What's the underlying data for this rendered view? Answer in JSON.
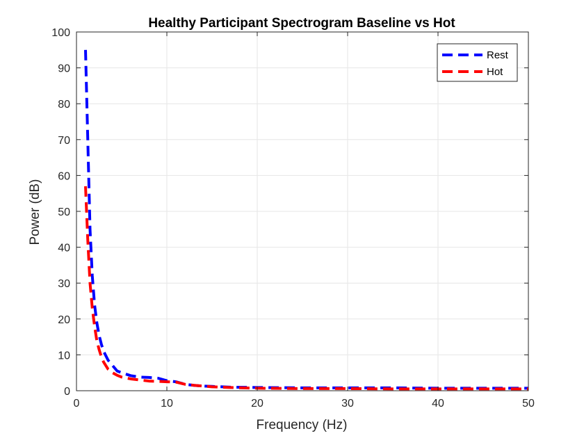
{
  "chart_data": {
    "type": "line",
    "title": "Healthy Participant Spectrogram Baseline vs Hot",
    "xlabel": "Frequency (Hz)",
    "ylabel": "Power (dB)",
    "xlim": [
      0,
      50
    ],
    "ylim": [
      0,
      100
    ],
    "xticks": [
      0,
      10,
      20,
      30,
      40,
      50
    ],
    "yticks": [
      0,
      10,
      20,
      30,
      40,
      50,
      60,
      70,
      80,
      90,
      100
    ],
    "grid": true,
    "legend_position": "top-right",
    "series": [
      {
        "name": "Rest",
        "color": "#0000ff",
        "line_style": "dashed",
        "x": [
          1,
          1.25,
          1.5,
          1.75,
          2,
          2.25,
          2.5,
          2.75,
          3,
          3.5,
          4,
          4.5,
          5,
          6,
          7,
          8,
          9,
          10,
          11,
          12,
          13,
          14,
          15,
          17,
          20,
          25,
          30,
          35,
          40,
          45,
          50
        ],
        "y": [
          95,
          70,
          45,
          32,
          24,
          19,
          15.5,
          13,
          11,
          8.5,
          7,
          5.5,
          5,
          4.2,
          3.8,
          3.7,
          3.5,
          2.8,
          2.5,
          1.8,
          1.5,
          1.3,
          1.2,
          1.0,
          0.9,
          0.8,
          0.8,
          0.8,
          0.7,
          0.7,
          0.7
        ]
      },
      {
        "name": "Hot",
        "color": "#ff0000",
        "line_style": "dashed",
        "x": [
          1,
          1.25,
          1.5,
          1.75,
          2,
          2.25,
          2.5,
          2.75,
          3,
          3.5,
          4,
          4.5,
          5,
          6,
          7,
          8,
          9,
          10,
          11,
          12,
          13,
          14,
          15,
          17,
          20,
          25,
          30,
          35,
          40,
          45,
          50
        ],
        "y": [
          57,
          42,
          30,
          23,
          18,
          14,
          11.5,
          9.5,
          8,
          6,
          5,
          4.3,
          3.8,
          3.3,
          3.0,
          2.7,
          2.6,
          2.5,
          2.4,
          1.8,
          1.5,
          1.3,
          1.1,
          0.9,
          0.7,
          0.6,
          0.6,
          0.5,
          0.5,
          0.5,
          0.5
        ]
      }
    ]
  }
}
